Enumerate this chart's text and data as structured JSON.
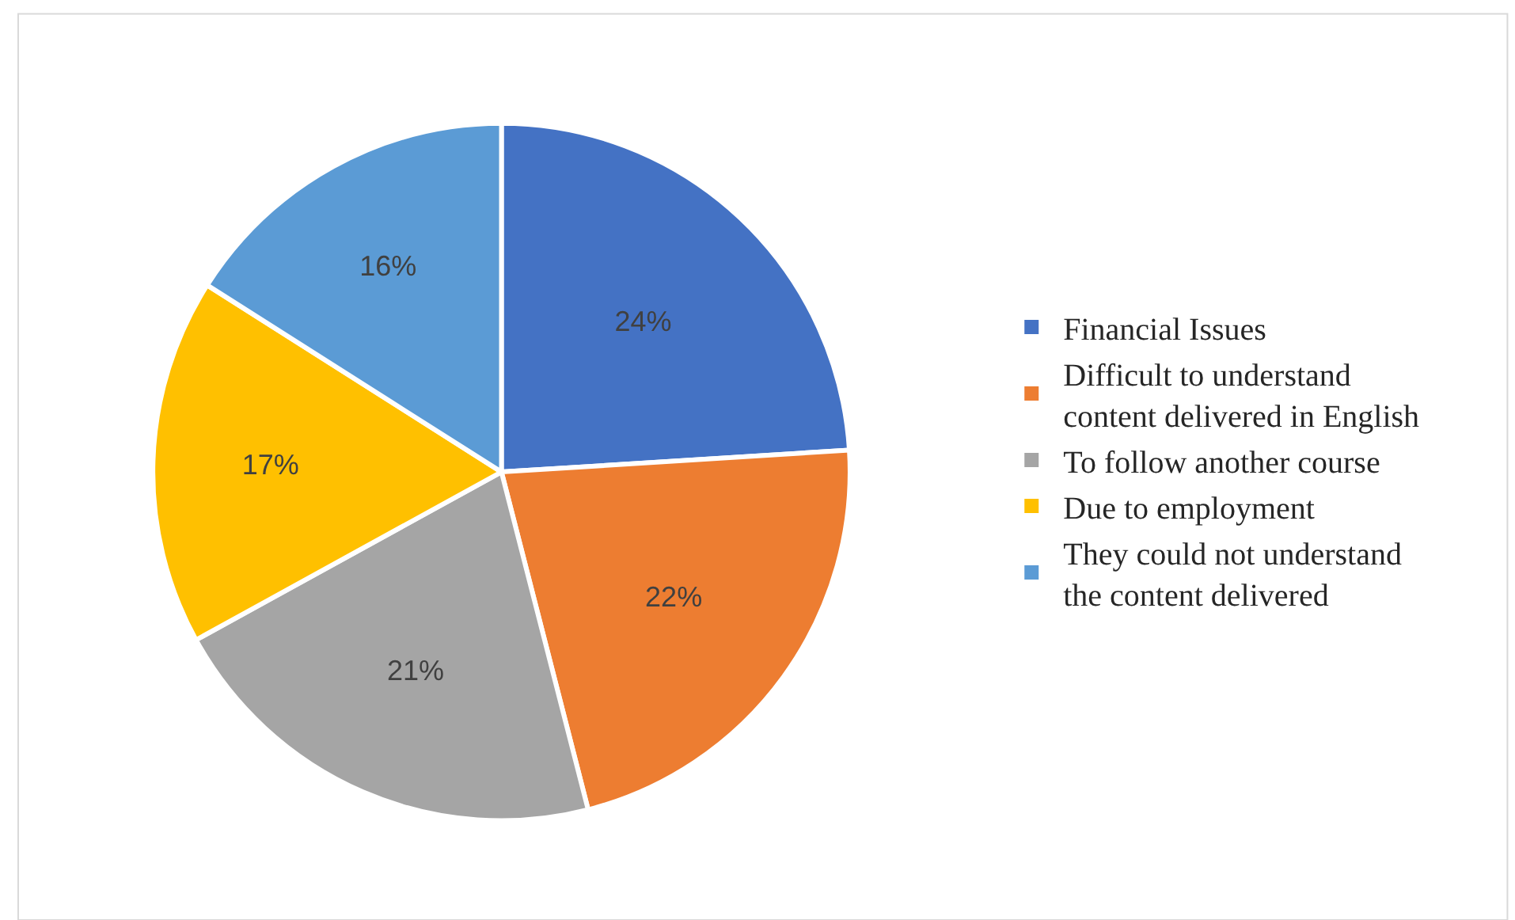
{
  "chart_data": {
    "type": "pie",
    "categories": [
      "Financial Issues",
      "Difficult to understand content delivered in English",
      "To follow another course",
      "Due to employment",
      "They could not understand the content delivered"
    ],
    "values": [
      24,
      22,
      21,
      17,
      16
    ],
    "value_labels": [
      "24%",
      "22%",
      "21%",
      "17%",
      "16%"
    ],
    "colors": [
      "#4472c4",
      "#ed7d31",
      "#a5a5a5",
      "#ffc000",
      "#5b9bd5"
    ],
    "legend": "right"
  }
}
